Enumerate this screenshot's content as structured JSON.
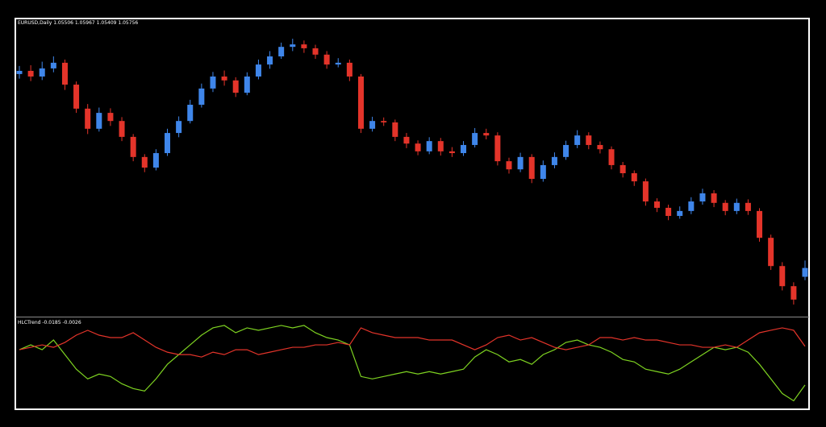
{
  "chart_data": [
    {
      "type": "candlestick",
      "title": "EURUSD,Daily",
      "open": [
        1.1125,
        1.1134,
        1.1118,
        1.1141,
        1.1157,
        1.1095,
        1.1027,
        1.097,
        1.1015,
        1.0992,
        1.0947,
        1.089,
        1.086,
        1.0901,
        1.0958,
        1.0992,
        1.1038,
        1.1084,
        1.1118,
        1.1107,
        1.1072,
        1.1118,
        1.1152,
        1.1175,
        1.1202,
        1.1209,
        1.1198,
        1.118,
        1.1152,
        1.1157,
        1.1118,
        1.097,
        1.0992,
        1.0988,
        1.0947,
        1.0928,
        1.0906,
        1.0935,
        1.0906,
        1.0901,
        1.0924,
        1.0958,
        1.0951,
        1.0878,
        1.0855,
        1.089,
        1.0828,
        1.0867,
        1.089,
        1.0924,
        1.0951,
        1.0924,
        1.0912,
        1.0867,
        1.0844,
        1.0821,
        1.0764,
        1.0746,
        1.0723,
        1.0737,
        1.0764,
        1.0787,
        1.076,
        1.0737,
        1.076,
        1.0737,
        1.0661,
        1.0581,
        1.0524,
        1.05506
      ],
      "high": [
        1.1148,
        1.115,
        1.116,
        1.1175,
        1.1166,
        1.1104,
        1.104,
        1.103,
        1.1028,
        1.1003,
        1.0955,
        1.0898,
        1.0912,
        1.097,
        1.1005,
        1.1052,
        1.1098,
        1.1131,
        1.1135,
        1.1116,
        1.113,
        1.1166,
        1.119,
        1.1214,
        1.1225,
        1.122,
        1.1208,
        1.119,
        1.117,
        1.1166,
        1.1125,
        1.1004,
        1.1002,
        1.0996,
        1.0958,
        1.0937,
        1.0946,
        1.0944,
        1.0918,
        1.0935,
        1.0972,
        1.097,
        1.096,
        1.0888,
        1.0902,
        1.0898,
        1.088,
        1.0903,
        1.0936,
        1.0966,
        1.096,
        1.0934,
        1.092,
        1.0876,
        1.0852,
        1.0829,
        1.0773,
        1.0755,
        1.075,
        1.0776,
        1.08,
        1.0796,
        1.0768,
        1.0772,
        1.077,
        1.0745,
        1.067,
        1.0592,
        1.0535,
        1.05967
      ],
      "low": [
        1.1112,
        1.1105,
        1.1108,
        1.113,
        1.108,
        1.1015,
        1.0955,
        1.0962,
        1.0978,
        1.0935,
        1.0878,
        1.0847,
        1.0852,
        1.0893,
        1.0946,
        1.0985,
        1.103,
        1.1074,
        1.1092,
        1.106,
        1.1065,
        1.111,
        1.114,
        1.1168,
        1.119,
        1.1185,
        1.1168,
        1.114,
        1.1144,
        1.1105,
        1.0958,
        1.0962,
        1.0978,
        1.0935,
        1.0915,
        1.0895,
        1.0898,
        1.0894,
        1.089,
        1.0893,
        1.0917,
        1.094,
        1.0866,
        1.0843,
        1.0847,
        1.0816,
        1.082,
        1.0858,
        1.0882,
        1.0915,
        1.0912,
        1.09,
        1.0855,
        1.0832,
        1.0808,
        1.0752,
        1.0734,
        1.0711,
        1.0715,
        1.0728,
        1.0755,
        1.0748,
        1.0725,
        1.0728,
        1.0726,
        1.065,
        1.057,
        1.0512,
        1.0472,
        1.05409
      ],
      "close": [
        1.1134,
        1.1118,
        1.1141,
        1.1157,
        1.1095,
        1.1027,
        1.097,
        1.1015,
        1.0992,
        1.0947,
        1.089,
        1.086,
        1.0901,
        1.0958,
        1.0992,
        1.1038,
        1.1084,
        1.1118,
        1.1107,
        1.1072,
        1.1118,
        1.1152,
        1.1175,
        1.1202,
        1.1209,
        1.1198,
        1.118,
        1.1152,
        1.1157,
        1.1118,
        1.097,
        1.0992,
        1.0988,
        1.0947,
        1.0928,
        1.0906,
        1.0935,
        1.0906,
        1.0901,
        1.0924,
        1.0958,
        1.0951,
        1.0878,
        1.0855,
        1.089,
        1.0828,
        1.0867,
        1.089,
        1.0924,
        1.0951,
        1.0924,
        1.0912,
        1.0867,
        1.0844,
        1.0821,
        1.0764,
        1.0746,
        1.0723,
        1.0737,
        1.0764,
        1.0787,
        1.076,
        1.0737,
        1.076,
        1.0737,
        1.0661,
        1.0581,
        1.0524,
        1.0486,
        1.05756
      ],
      "colors": {
        "up": "#3f86ea",
        "down": "#e4342a"
      },
      "ylim": [
        1.044,
        1.128
      ]
    },
    {
      "type": "line",
      "title": "HLCTrend",
      "series": [
        {
          "color": "#7ed321",
          "values": [
            -0.004,
            -0.002,
            -0.004,
            0.0,
            -0.006,
            -0.012,
            -0.016,
            -0.014,
            -0.015,
            -0.018,
            -0.02,
            -0.021,
            -0.016,
            -0.01,
            -0.006,
            -0.002,
            0.002,
            0.005,
            0.006,
            0.003,
            0.005,
            0.004,
            0.005,
            0.006,
            0.005,
            0.006,
            0.003,
            0.001,
            0.0,
            -0.002,
            -0.015,
            -0.016,
            -0.015,
            -0.014,
            -0.013,
            -0.014,
            -0.013,
            -0.014,
            -0.013,
            -0.012,
            -0.007,
            -0.004,
            -0.006,
            -0.009,
            -0.008,
            -0.01,
            -0.006,
            -0.004,
            -0.001,
            0.0,
            -0.002,
            -0.003,
            -0.005,
            -0.008,
            -0.009,
            -0.012,
            -0.013,
            -0.014,
            -0.012,
            -0.009,
            -0.006,
            -0.003,
            -0.004,
            -0.003,
            -0.005,
            -0.01,
            -0.016,
            -0.022,
            -0.025,
            -0.0185
          ]
        },
        {
          "color": "#e4342a",
          "values": [
            -0.004,
            -0.003,
            -0.002,
            -0.003,
            -0.001,
            0.002,
            0.004,
            0.002,
            0.001,
            0.001,
            0.003,
            0.0,
            -0.003,
            -0.005,
            -0.006,
            -0.006,
            -0.007,
            -0.005,
            -0.006,
            -0.004,
            -0.004,
            -0.006,
            -0.005,
            -0.004,
            -0.003,
            -0.003,
            -0.002,
            -0.002,
            -0.001,
            -0.002,
            0.005,
            0.003,
            0.002,
            0.001,
            0.001,
            0.001,
            0.0,
            0.0,
            0.0,
            -0.002,
            -0.004,
            -0.002,
            0.001,
            0.002,
            0.0,
            0.001,
            -0.001,
            -0.003,
            -0.004,
            -0.003,
            -0.002,
            0.001,
            0.001,
            0.0,
            0.001,
            0.0,
            0.0,
            -0.001,
            -0.002,
            -0.002,
            -0.003,
            -0.003,
            -0.002,
            -0.003,
            0.0,
            0.003,
            0.004,
            0.005,
            0.004,
            -0.0026
          ]
        }
      ],
      "ylim": [
        -0.0285,
        0.0083
      ]
    }
  ]
}
